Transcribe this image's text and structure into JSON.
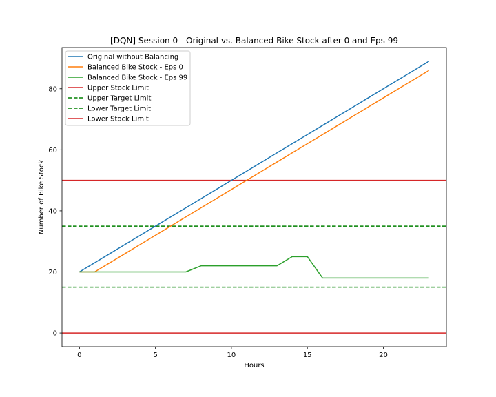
{
  "chart_data": {
    "type": "line",
    "title": "[DQN] Session 0 - Original vs. Balanced Bike Stock after 0 and Eps 99",
    "xlabel": "Hours",
    "ylabel": "Number of Bike Stock",
    "xlim": [
      -1.15,
      24.15
    ],
    "ylim": [
      -4.5,
      93.5
    ],
    "xticks": [
      0,
      5,
      10,
      15,
      20
    ],
    "yticks": [
      0,
      20,
      40,
      60,
      80
    ],
    "grid": false,
    "legend_position": "top-left",
    "series": [
      {
        "name": "Original without Balancing",
        "color": "#1f77b4",
        "style": "solid",
        "x": [
          0,
          1,
          2,
          3,
          4,
          5,
          6,
          7,
          8,
          9,
          10,
          11,
          12,
          13,
          14,
          15,
          16,
          17,
          18,
          19,
          20,
          21,
          22,
          23
        ],
        "values": [
          20,
          23,
          26,
          29,
          32,
          35,
          38,
          41,
          44,
          47,
          50,
          53,
          56,
          59,
          62,
          65,
          68,
          71,
          74,
          77,
          80,
          83,
          86,
          89
        ]
      },
      {
        "name": "Balanced Bike Stock - Eps 0",
        "color": "#ff7f0e",
        "style": "solid",
        "x": [
          0,
          1,
          2,
          3,
          4,
          5,
          6,
          7,
          8,
          9,
          10,
          11,
          12,
          13,
          14,
          15,
          16,
          17,
          18,
          19,
          20,
          21,
          22,
          23
        ],
        "values": [
          20,
          20,
          23,
          26,
          29,
          32,
          35,
          38,
          41,
          44,
          47,
          50,
          53,
          56,
          59,
          62,
          65,
          68,
          71,
          74,
          77,
          80,
          83,
          86
        ]
      },
      {
        "name": "Balanced Bike Stock - Eps 99",
        "color": "#2ca02c",
        "style": "solid",
        "x": [
          0,
          1,
          2,
          3,
          4,
          5,
          6,
          7,
          8,
          9,
          10,
          11,
          12,
          13,
          14,
          15,
          16,
          17,
          18,
          19,
          20,
          21,
          22,
          23
        ],
        "values": [
          20,
          20,
          20,
          20,
          20,
          20,
          20,
          20,
          22,
          22,
          22,
          22,
          22,
          22,
          25,
          25,
          18,
          18,
          18,
          18,
          18,
          18,
          18,
          18
        ]
      }
    ],
    "reference_lines": [
      {
        "name": "Upper Stock Limit",
        "color": "#d62728",
        "style": "solid",
        "y": 50
      },
      {
        "name": "Upper Target Limit",
        "color": "#008000",
        "style": "dashed",
        "y": 35
      },
      {
        "name": "Lower Target Limit",
        "color": "#008000",
        "style": "dashed",
        "y": 15
      },
      {
        "name": "Lower Stock Limit",
        "color": "#d62728",
        "style": "solid",
        "y": 0
      }
    ]
  }
}
